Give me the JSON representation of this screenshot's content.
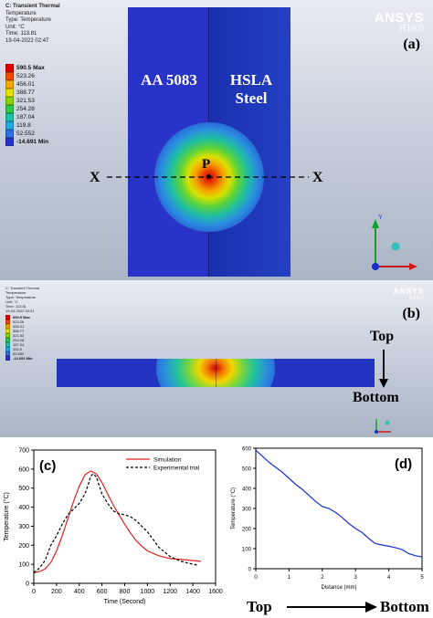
{
  "panel_a": {
    "info_lines": [
      "C: Transient Thermal",
      "Temperature",
      "Type: Temperature",
      "Unit: °C",
      "Time: 113.81",
      "19-04-2022 02:47"
    ],
    "legend": [
      {
        "label": "590.5 Max",
        "color": "#e00000"
      },
      {
        "label": "523.26",
        "color": "#f04a00"
      },
      {
        "label": "456.01",
        "color": "#f5a800"
      },
      {
        "label": "388.77",
        "color": "#e8e200"
      },
      {
        "label": "321.53",
        "color": "#8ad400"
      },
      {
        "label": "254.28",
        "color": "#2ec84a"
      },
      {
        "label": "187.04",
        "color": "#1dc2a8"
      },
      {
        "label": "119.8",
        "color": "#23a8e0"
      },
      {
        "label": "52.552",
        "color": "#2f6fe4"
      },
      {
        "label": "-14.691 Min",
        "color": "#2a33c8"
      }
    ],
    "logo_name": "ANSYS",
    "logo_version": "R19.0",
    "letter": "(a)",
    "left_material": "AA 5083",
    "right_material_line1": "HSLA",
    "right_material_line2": "Steel",
    "point_label": "P",
    "x_left": "X",
    "x_right": "X",
    "axis_y_label": "Y"
  },
  "panel_b": {
    "info_lines": [
      "C: Transient Thermal",
      "Temperature",
      "Type: Temperature",
      "Unit: °C",
      "Time: 113.81",
      "19-04-2022 02:51"
    ],
    "legend": [
      {
        "label": "590.5 Max",
        "color": "#e00000"
      },
      {
        "label": "523.26",
        "color": "#f04a00"
      },
      {
        "label": "456.01",
        "color": "#f5a800"
      },
      {
        "label": "388.77",
        "color": "#e8e200"
      },
      {
        "label": "321.53",
        "color": "#8ad400"
      },
      {
        "label": "254.28",
        "color": "#2ec84a"
      },
      {
        "label": "187.04",
        "color": "#1dc2a8"
      },
      {
        "label": "119.8",
        "color": "#23a8e0"
      },
      {
        "label": "52.552",
        "color": "#2f6fe4"
      },
      {
        "label": "-14.691 Min",
        "color": "#2a33c8"
      }
    ],
    "logo_name": "ANSYS",
    "logo_version": "R19.0",
    "letter": "(b)",
    "top_label": "Top",
    "bottom_label": "Bottom"
  },
  "chart_data": [
    {
      "type": "line",
      "panel": "(c)",
      "xlabel": "Time (Second)",
      "ylabel": "Temperature (°C)",
      "xlim": [
        0,
        1600
      ],
      "ylim": [
        0,
        700
      ],
      "xticks": [
        0,
        200,
        400,
        600,
        800,
        1000,
        1200,
        1400,
        1600
      ],
      "yticks": [
        0,
        100,
        200,
        300,
        400,
        500,
        600,
        700
      ],
      "legend_position": "top-right",
      "series": [
        {
          "name": "Simulation",
          "color": "#e02020",
          "dash": "solid",
          "x": [
            0,
            50,
            100,
            150,
            200,
            250,
            300,
            350,
            400,
            450,
            500,
            550,
            600,
            650,
            700,
            750,
            800,
            850,
            900,
            950,
            1000,
            1100,
            1200,
            1300,
            1400,
            1470
          ],
          "y": [
            55,
            62,
            75,
            110,
            170,
            250,
            340,
            430,
            510,
            570,
            590,
            575,
            530,
            470,
            410,
            360,
            310,
            265,
            225,
            195,
            170,
            145,
            130,
            125,
            120,
            115
          ]
        },
        {
          "name": "Experimental trial",
          "color": "#000000",
          "dash": "dashed",
          "x": [
            0,
            50,
            100,
            150,
            200,
            250,
            300,
            350,
            400,
            450,
            480,
            500,
            520,
            550,
            600,
            650,
            700,
            750,
            800,
            850,
            900,
            950,
            1000,
            1050,
            1100,
            1200,
            1300,
            1400,
            1450
          ],
          "y": [
            55,
            80,
            120,
            200,
            250,
            310,
            360,
            390,
            420,
            470,
            520,
            560,
            575,
            560,
            470,
            420,
            380,
            365,
            360,
            350,
            330,
            300,
            270,
            230,
            190,
            140,
            115,
            100,
            95
          ]
        }
      ]
    },
    {
      "type": "line",
      "panel": "(d)",
      "xlabel": "Distance (mm)",
      "ylabel": "Temperature (°C)",
      "xlim": [
        0,
        5
      ],
      "ylim": [
        0,
        600
      ],
      "xticks": [
        0,
        1,
        2,
        3,
        4,
        5
      ],
      "yticks": [
        0,
        100,
        200,
        300,
        400,
        500,
        600
      ],
      "series": [
        {
          "color": "#1a2fd0",
          "dash": "solid",
          "x": [
            0,
            0.2,
            0.4,
            0.6,
            0.8,
            1.0,
            1.2,
            1.4,
            1.6,
            1.8,
            2.0,
            2.2,
            2.4,
            2.6,
            2.8,
            3.0,
            3.2,
            3.4,
            3.6,
            3.8,
            4.0,
            4.2,
            4.4,
            4.6,
            4.8,
            5.0
          ],
          "y": [
            590,
            560,
            530,
            505,
            480,
            450,
            420,
            395,
            365,
            335,
            310,
            300,
            280,
            255,
            225,
            200,
            180,
            150,
            125,
            118,
            112,
            105,
            95,
            75,
            65,
            58
          ]
        }
      ]
    }
  ],
  "panel_c_letter": "(c)",
  "panel_d_letter": "(d)",
  "bottom_row": {
    "left": "Top",
    "right": "Bottom"
  }
}
